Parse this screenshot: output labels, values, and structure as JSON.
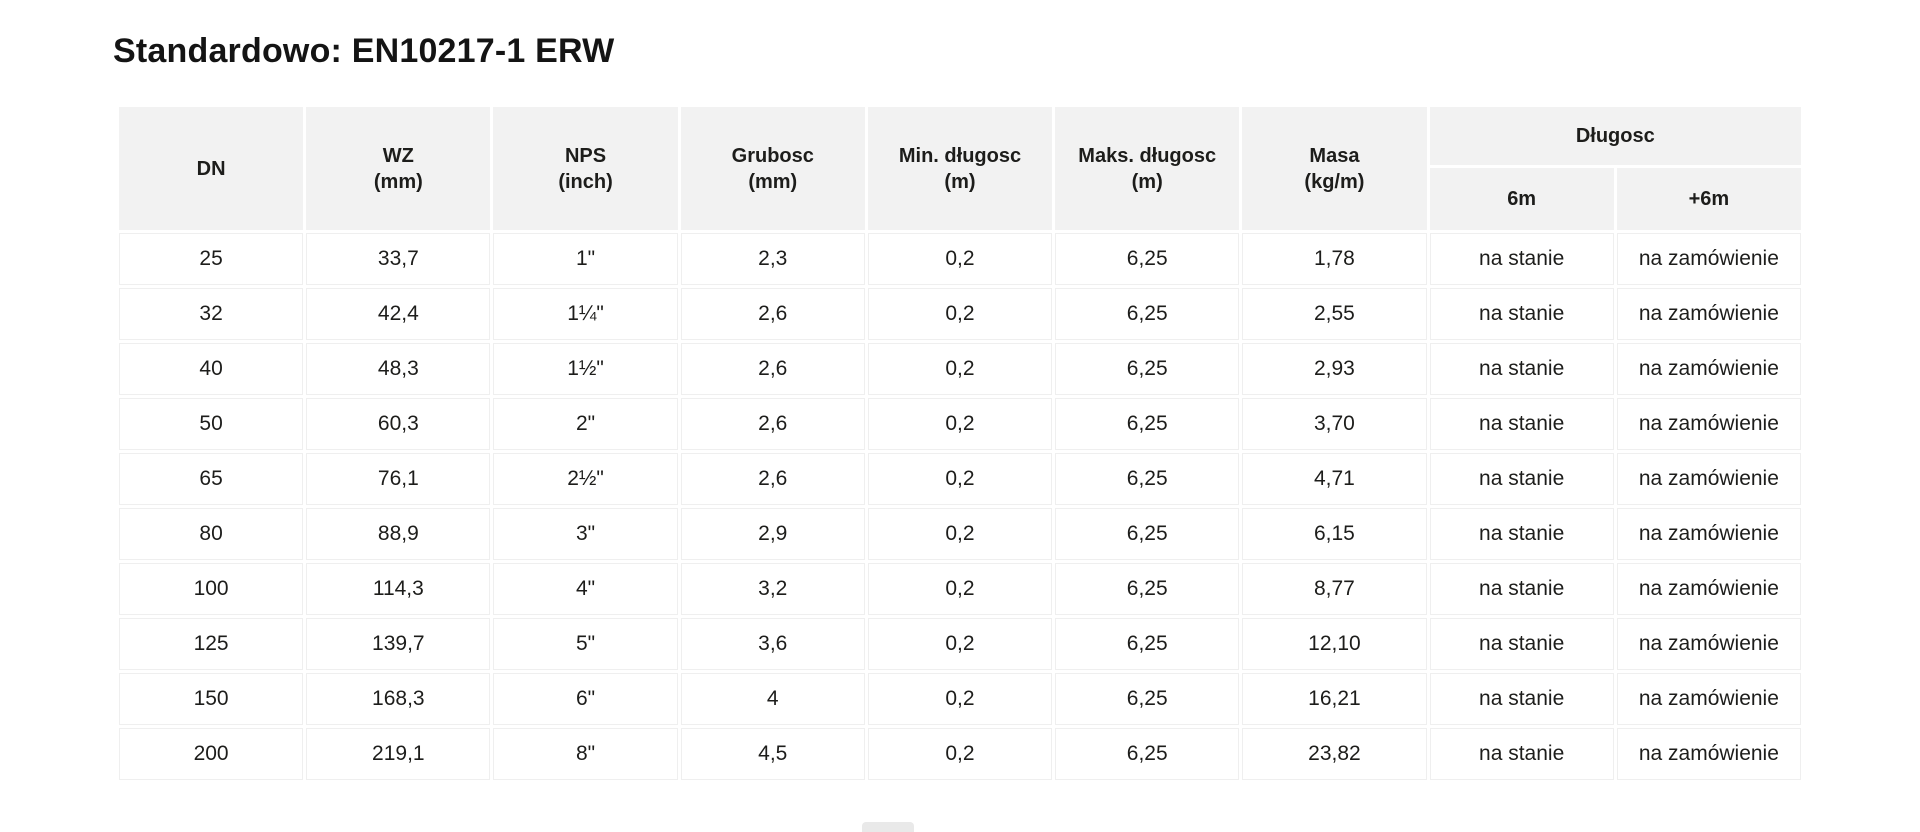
{
  "page": {
    "title": "Standardowo: EN10217-1 ERW"
  },
  "colors": {
    "page_bg": "#ffffff",
    "header_bg": "#f2f2f2",
    "cell_border": "#efefef",
    "text": "#1d1d1b"
  },
  "table": {
    "columns": [
      {
        "label": "DN",
        "unit": ""
      },
      {
        "label": "WZ",
        "unit": "(mm)"
      },
      {
        "label": "NPS",
        "unit": "(inch)"
      },
      {
        "label": "Grubosc",
        "unit": "(mm)"
      },
      {
        "label": "Min. długosc",
        "unit": "(m)"
      },
      {
        "label": "Maks. długosc",
        "unit": "(m)"
      },
      {
        "label": "Masa",
        "unit": "(kg/m)"
      }
    ],
    "group": {
      "label": "Długosc",
      "sub_columns": [
        "6m",
        "+6m"
      ]
    },
    "rows": [
      [
        "25",
        "33,7",
        "1\"",
        "2,3",
        "0,2",
        "6,25",
        "1,78",
        "na stanie",
        "na zamówienie"
      ],
      [
        "32",
        "42,4",
        "1¼\"",
        "2,6",
        "0,2",
        "6,25",
        "2,55",
        "na stanie",
        "na zamówienie"
      ],
      [
        "40",
        "48,3",
        "1½\"",
        "2,6",
        "0,2",
        "6,25",
        "2,93",
        "na stanie",
        "na zamówienie"
      ],
      [
        "50",
        "60,3",
        "2\"",
        "2,6",
        "0,2",
        "6,25",
        "3,70",
        "na stanie",
        "na zamówienie"
      ],
      [
        "65",
        "76,1",
        "2½\"",
        "2,6",
        "0,2",
        "6,25",
        "4,71",
        "na stanie",
        "na zamówienie"
      ],
      [
        "80",
        "88,9",
        "3\"",
        "2,9",
        "0,2",
        "6,25",
        "6,15",
        "na stanie",
        "na zamówienie"
      ],
      [
        "100",
        "114,3",
        "4\"",
        "3,2",
        "0,2",
        "6,25",
        "8,77",
        "na stanie",
        "na zamówienie"
      ],
      [
        "125",
        "139,7",
        "5\"",
        "3,6",
        "0,2",
        "6,25",
        "12,10",
        "na stanie",
        "na zamówienie"
      ],
      [
        "150",
        "168,3",
        "6\"",
        "4",
        "0,2",
        "6,25",
        "16,21",
        "na stanie",
        "na zamówienie"
      ],
      [
        "200",
        "219,1",
        "8\"",
        "4,5",
        "0,2",
        "6,25",
        "23,82",
        "na stanie",
        "na zamówienie"
      ]
    ]
  }
}
